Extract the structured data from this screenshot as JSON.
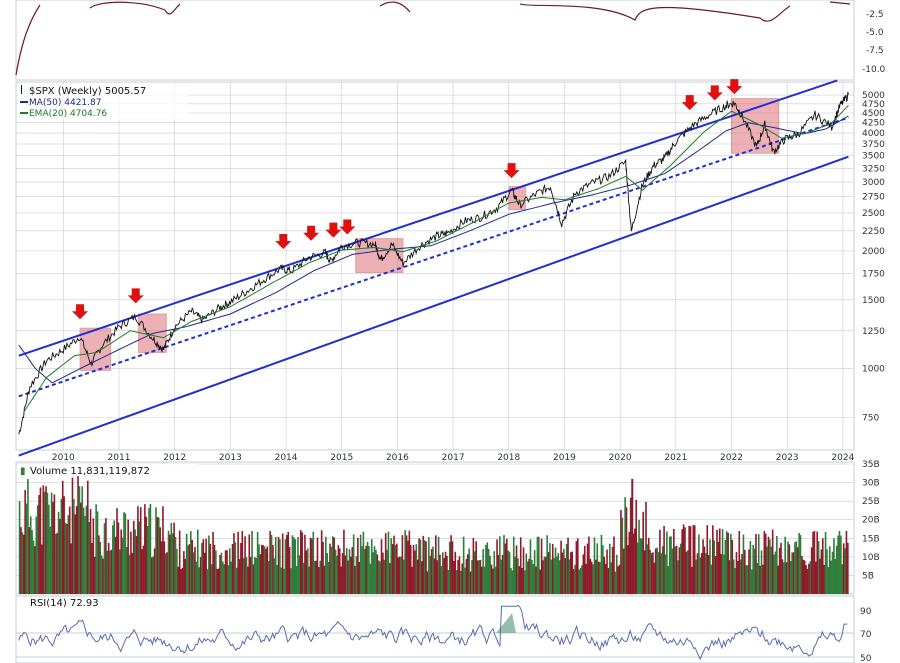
{
  "colors": {
    "price": "#111111",
    "ma50": "#1f2a8a",
    "ema20": "#1f7a2a",
    "channel": "#1f2fcf",
    "highlight": "#e0707a",
    "arrow": "#e01010",
    "vol_up": "#2f7d3a",
    "vol_down": "#8e1a2b",
    "rsi": "#5a6bb0",
    "grid": "#c7ccd4"
  },
  "top_panel": {
    "ticks": [
      "-2.5",
      "-5.0",
      "-7.5",
      "-10.0"
    ]
  },
  "price_panel": {
    "legend": {
      "symbol": "$SPX (Weekly) 5005.57",
      "ma": "MA(50) 4421.87",
      "ema": "EMA(20) 4704.76"
    },
    "y_ticks": [
      "5000",
      "4750",
      "4500",
      "4250",
      "4000",
      "3750",
      "3500",
      "3250",
      "3000",
      "2750",
      "2500",
      "2250",
      "2000",
      "1750",
      "1500",
      "1250",
      "1000",
      "750"
    ]
  },
  "volume_panel": {
    "label": "Volume 11,831,119,872",
    "ticks": [
      "35B",
      "30B",
      "25B",
      "20B",
      "15B",
      "10B",
      "5B"
    ]
  },
  "rsi_panel": {
    "label": "RSI(14) 72.93",
    "ticks": [
      "90",
      "70",
      "50"
    ]
  },
  "chart_data": {
    "type": "line",
    "scale": "log",
    "x_ticks": [
      "2010",
      "2011",
      "2012",
      "2013",
      "2014",
      "2015",
      "2016",
      "2017",
      "2018",
      "2019",
      "2020",
      "2021",
      "2022",
      "2023",
      "2024"
    ],
    "series": [
      {
        "name": "$SPX (Weekly)",
        "points": [
          [
            2009.2,
            680
          ],
          [
            2009.4,
            900
          ],
          [
            2009.7,
            1050
          ],
          [
            2010.0,
            1120
          ],
          [
            2010.3,
            1210
          ],
          [
            2010.5,
            1030
          ],
          [
            2010.7,
            1150
          ],
          [
            2011.0,
            1280
          ],
          [
            2011.3,
            1360
          ],
          [
            2011.6,
            1200
          ],
          [
            2011.8,
            1120
          ],
          [
            2012.0,
            1280
          ],
          [
            2012.3,
            1400
          ],
          [
            2012.5,
            1330
          ],
          [
            2012.8,
            1430
          ],
          [
            2013.0,
            1480
          ],
          [
            2013.3,
            1580
          ],
          [
            2013.6,
            1690
          ],
          [
            2013.9,
            1800
          ],
          [
            2014.1,
            1780
          ],
          [
            2014.4,
            1920
          ],
          [
            2014.7,
            1980
          ],
          [
            2014.8,
            1880
          ],
          [
            2015.0,
            2060
          ],
          [
            2015.3,
            2100
          ],
          [
            2015.6,
            2080
          ],
          [
            2015.7,
            1900
          ],
          [
            2015.9,
            2080
          ],
          [
            2016.1,
            1860
          ],
          [
            2016.4,
            2060
          ],
          [
            2016.7,
            2180
          ],
          [
            2016.9,
            2220
          ],
          [
            2017.2,
            2380
          ],
          [
            2017.5,
            2440
          ],
          [
            2017.8,
            2580
          ],
          [
            2018.05,
            2860
          ],
          [
            2018.2,
            2620
          ],
          [
            2018.5,
            2800
          ],
          [
            2018.75,
            2920
          ],
          [
            2018.95,
            2350
          ],
          [
            2019.2,
            2820
          ],
          [
            2019.5,
            2980
          ],
          [
            2019.8,
            3100
          ],
          [
            2020.1,
            3380
          ],
          [
            2020.2,
            2240
          ],
          [
            2020.4,
            2950
          ],
          [
            2020.6,
            3300
          ],
          [
            2020.8,
            3450
          ],
          [
            2021.0,
            3800
          ],
          [
            2021.3,
            4180
          ],
          [
            2021.6,
            4450
          ],
          [
            2021.9,
            4700
          ],
          [
            2022.05,
            4780
          ],
          [
            2022.2,
            4400
          ],
          [
            2022.45,
            3680
          ],
          [
            2022.6,
            4200
          ],
          [
            2022.75,
            3580
          ],
          [
            2022.95,
            3850
          ],
          [
            2023.2,
            3980
          ],
          [
            2023.5,
            4450
          ],
          [
            2023.8,
            4150
          ],
          [
            2023.95,
            4700
          ],
          [
            2024.1,
            5005.57
          ]
        ]
      },
      {
        "name": "MA(50)",
        "points": [
          [
            2009.2,
            1150
          ],
          [
            2009.5,
            1000
          ],
          [
            2009.8,
            920
          ],
          [
            2010.3,
            1000
          ],
          [
            2011.0,
            1120
          ],
          [
            2011.6,
            1230
          ],
          [
            2012.2,
            1280
          ],
          [
            2013.0,
            1380
          ],
          [
            2013.8,
            1560
          ],
          [
            2014.5,
            1780
          ],
          [
            2015.2,
            1960
          ],
          [
            2015.9,
            2020
          ],
          [
            2016.6,
            2060
          ],
          [
            2017.3,
            2250
          ],
          [
            2018.0,
            2480
          ],
          [
            2018.8,
            2650
          ],
          [
            2019.5,
            2780
          ],
          [
            2020.2,
            2950
          ],
          [
            2020.8,
            3150
          ],
          [
            2021.4,
            3600
          ],
          [
            2021.9,
            4050
          ],
          [
            2022.3,
            4250
          ],
          [
            2022.8,
            4120
          ],
          [
            2023.3,
            3980
          ],
          [
            2023.7,
            4100
          ],
          [
            2024.1,
            4421.87
          ]
        ]
      },
      {
        "name": "EMA(20)",
        "points": [
          [
            2009.3,
            780
          ],
          [
            2009.7,
            950
          ],
          [
            2010.2,
            1080
          ],
          [
            2010.6,
            1100
          ],
          [
            2011.2,
            1250
          ],
          [
            2011.8,
            1200
          ],
          [
            2012.3,
            1320
          ],
          [
            2013.0,
            1440
          ],
          [
            2013.7,
            1640
          ],
          [
            2014.4,
            1860
          ],
          [
            2015.0,
            2010
          ],
          [
            2015.6,
            2040
          ],
          [
            2016.1,
            1990
          ],
          [
            2016.7,
            2120
          ],
          [
            2017.4,
            2380
          ],
          [
            2018.0,
            2650
          ],
          [
            2018.6,
            2740
          ],
          [
            2019.0,
            2700
          ],
          [
            2019.6,
            2880
          ],
          [
            2020.1,
            3100
          ],
          [
            2020.4,
            2860
          ],
          [
            2020.9,
            3300
          ],
          [
            2021.5,
            4020
          ],
          [
            2022.0,
            4550
          ],
          [
            2022.5,
            4200
          ],
          [
            2022.9,
            3880
          ],
          [
            2023.4,
            4020
          ],
          [
            2023.8,
            4250
          ],
          [
            2024.1,
            4704.76
          ]
        ]
      }
    ],
    "channel": {
      "upper": [
        [
          2009.2,
          1080
        ],
        [
          2023.9,
          5450
        ]
      ],
      "mid_dashed": [
        [
          2009.2,
          850
        ],
        [
          2024.1,
          4380
        ]
      ],
      "lower": [
        [
          2009.2,
          600
        ],
        [
          2024.1,
          3480
        ]
      ]
    },
    "highlight_boxes": [
      {
        "x0": 2010.3,
        "x1": 2010.85,
        "y0": 990,
        "y1": 1270
      },
      {
        "x0": 2011.35,
        "x1": 2011.85,
        "y0": 1100,
        "y1": 1380
      },
      {
        "x0": 2015.25,
        "x1": 2016.1,
        "y0": 1760,
        "y1": 2150
      },
      {
        "x0": 2018.0,
        "x1": 2018.3,
        "y0": 2550,
        "y1": 2920
      },
      {
        "x0": 2022.0,
        "x1": 2022.85,
        "y0": 3550,
        "y1": 4900
      }
    ],
    "peak_arrows": [
      {
        "x": 2010.3,
        "y": 1330
      },
      {
        "x": 2011.3,
        "y": 1460
      },
      {
        "x": 2013.95,
        "y": 2010
      },
      {
        "x": 2014.45,
        "y": 2110
      },
      {
        "x": 2014.85,
        "y": 2150
      },
      {
        "x": 2015.1,
        "y": 2190
      },
      {
        "x": 2018.05,
        "y": 3050
      },
      {
        "x": 2021.25,
        "y": 4550
      },
      {
        "x": 2021.7,
        "y": 4820
      },
      {
        "x": 2022.05,
        "y": 5000
      }
    ],
    "volume": {
      "label": "Volume",
      "unit": "B",
      "ylim": [
        0,
        35
      ],
      "segments": [
        {
          "x0": 2009.2,
          "x1": 2010.5,
          "avg": 22
        },
        {
          "x0": 2010.5,
          "x1": 2012.0,
          "avg": 17
        },
        {
          "x0": 2012.0,
          "x1": 2014.0,
          "avg": 12
        },
        {
          "x0": 2014.0,
          "x1": 2016.5,
          "avg": 12
        },
        {
          "x0": 2016.5,
          "x1": 2020.0,
          "avg": 11
        },
        {
          "x0": 2020.0,
          "x1": 2020.5,
          "avg": 18
        },
        {
          "x0": 2020.5,
          "x1": 2022.0,
          "avg": 13
        },
        {
          "x0": 2022.0,
          "x1": 2024.1,
          "avg": 12
        }
      ],
      "last": 11.83
    },
    "rsi": {
      "label": "RSI(14)",
      "ylim": [
        40,
        95
      ],
      "last": 72.93
    }
  }
}
